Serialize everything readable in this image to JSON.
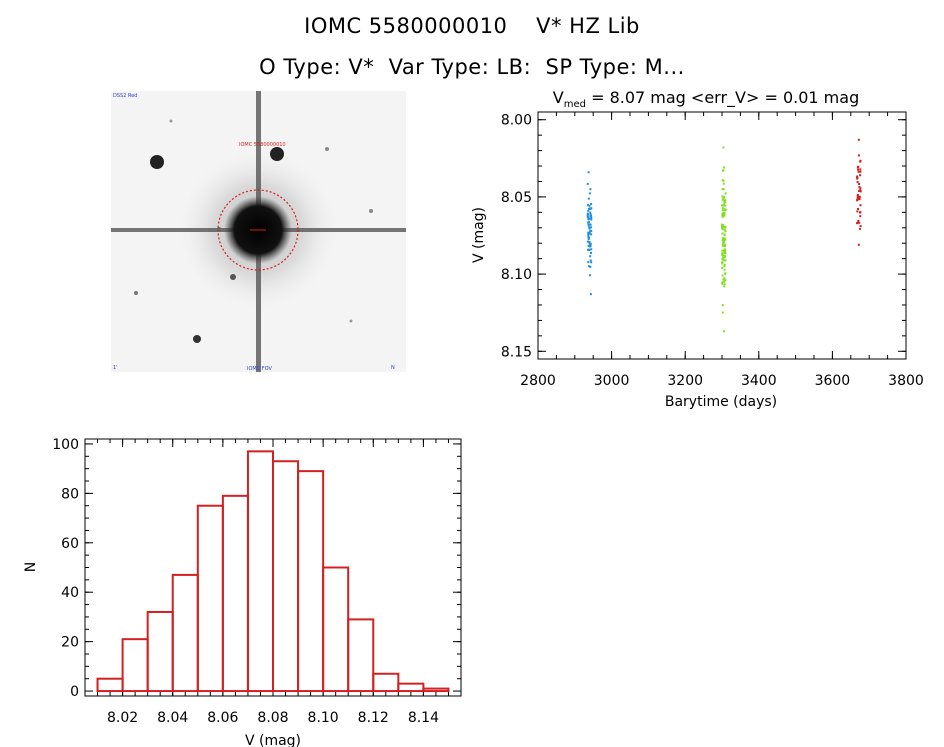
{
  "header": {
    "title": "IOMC 5580000010    V* HZ Lib",
    "subtitle": "O Type: V*  Var Type: LB:  SP Type: M..."
  },
  "thumbnail": {
    "target_label": "IOMC 5580000010",
    "corner_tl": "DSS2 Red",
    "corner_bl": "1'",
    "corner_bc": "IOMC FOV",
    "corner_br": "N",
    "circle_color": "#d42020"
  },
  "chart_data": [
    {
      "type": "scatter",
      "title_prefix": "V",
      "title_sub": "med",
      "title_rest": " = 8.07 mag <err_V> = 0.01 mag",
      "xlabel": "Barytime (days)",
      "ylabel": "V (mag)",
      "xlim": [
        2800,
        3800
      ],
      "ylim": [
        8.155,
        7.995
      ],
      "y_inverted": true,
      "xticks": [
        2800,
        3000,
        3200,
        3400,
        3600,
        3800
      ],
      "yticks": [
        "8.00",
        "8.05",
        "8.10",
        "8.15"
      ],
      "series": [
        {
          "color": "#1f8fe0",
          "x_center": 2940,
          "y_min": 8.034,
          "y_max": 8.113,
          "n": 70
        },
        {
          "color": "#7ee01e",
          "x_center": 3305,
          "y_min": 8.018,
          "y_max": 8.137,
          "n": 110
        },
        {
          "color": "#d42020",
          "x_center": 3672,
          "y_min": 8.013,
          "y_max": 8.081,
          "n": 45
        }
      ]
    },
    {
      "type": "bar",
      "subtype": "histogram",
      "xlabel": "V (mag)",
      "ylabel": "N",
      "xlim": [
        8.005,
        8.155
      ],
      "ylim": [
        -2,
        102
      ],
      "xticks": [
        "8.02",
        "8.04",
        "8.06",
        "8.08",
        "8.10",
        "8.12",
        "8.14"
      ],
      "yticks": [
        0,
        20,
        40,
        60,
        80,
        100
      ],
      "bin_width": 0.01,
      "bin_starts": [
        8.01,
        8.02,
        8.03,
        8.04,
        8.05,
        8.06,
        8.07,
        8.08,
        8.09,
        8.1,
        8.11,
        8.12,
        8.13,
        8.14
      ],
      "values": [
        5,
        21,
        32,
        47,
        75,
        79,
        97,
        93,
        89,
        50,
        29,
        7,
        3,
        1
      ],
      "bar_color": "#d42020"
    }
  ]
}
